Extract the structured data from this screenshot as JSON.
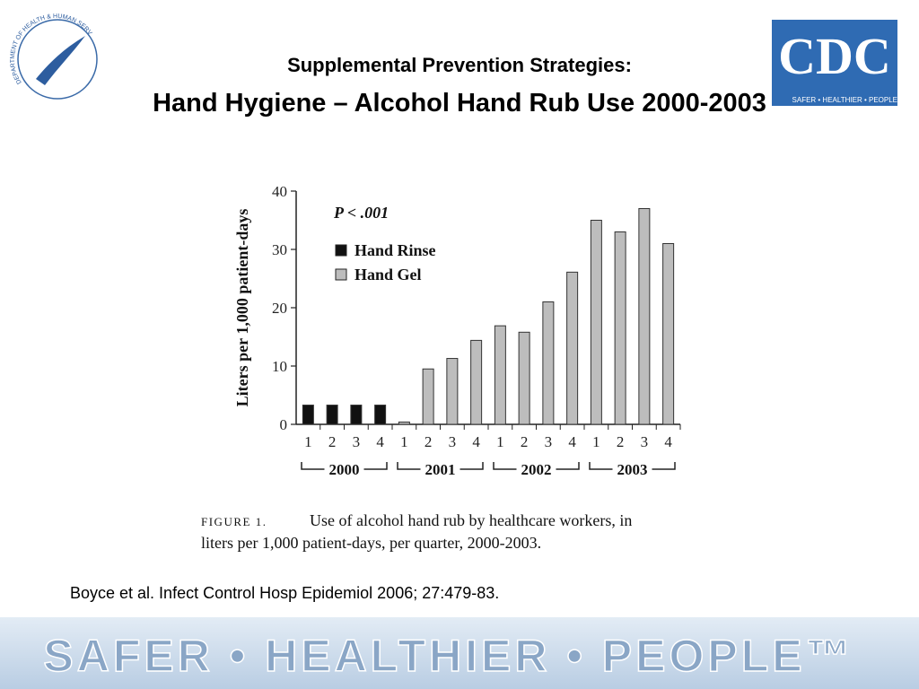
{
  "slide": {
    "subtitle": "Supplemental Prevention Strategies:",
    "title": "Hand Hygiene – Alcohol Hand Rub Use 2000-2003",
    "citation": "Boyce et al. Infect Control Hosp Epidemiol 2006; 27:479-83.",
    "caption_label": "FIGURE 1.",
    "caption_lines": [
      "Use of alcohol hand rub by healthcare workers, in",
      "liters per 1,000 patient-days, per quarter, 2000-2003."
    ],
    "cdc_logo": "CDC",
    "cdc_tagline": "SAFER • HEALTHIER • PEOPLE",
    "hhs_logo": "DEPARTMENT OF HEALTH & HUMAN SERVICES • USA",
    "footer": "SAFER • HEALTHIER • PEOPLE™"
  },
  "chart_data": {
    "type": "bar",
    "y_label": "Liters per 1,000 patient-days",
    "annotation": "P < .001",
    "categories": [
      "1",
      "2",
      "3",
      "4",
      "1",
      "2",
      "3",
      "4",
      "1",
      "2",
      "3",
      "4",
      "1",
      "2",
      "3",
      "4"
    ],
    "groups": [
      "2000",
      "2001",
      "2002",
      "2003"
    ],
    "series": [
      {
        "name": "Hand Rinse",
        "color": "#111111",
        "values": [
          3.3,
          3.3,
          3.3,
          3.3,
          null,
          null,
          null,
          null,
          null,
          null,
          null,
          null,
          null,
          null,
          null,
          null
        ]
      },
      {
        "name": "Hand Gel",
        "color": "#bdbdbd",
        "values": [
          null,
          null,
          null,
          null,
          0.4,
          9.5,
          11.3,
          14.4,
          16.9,
          15.8,
          21,
          26.1,
          35,
          33,
          37,
          31
        ]
      }
    ],
    "ylim": [
      0,
      40
    ],
    "yticks": [
      0,
      10,
      20,
      30,
      40
    ],
    "grid": false
  }
}
